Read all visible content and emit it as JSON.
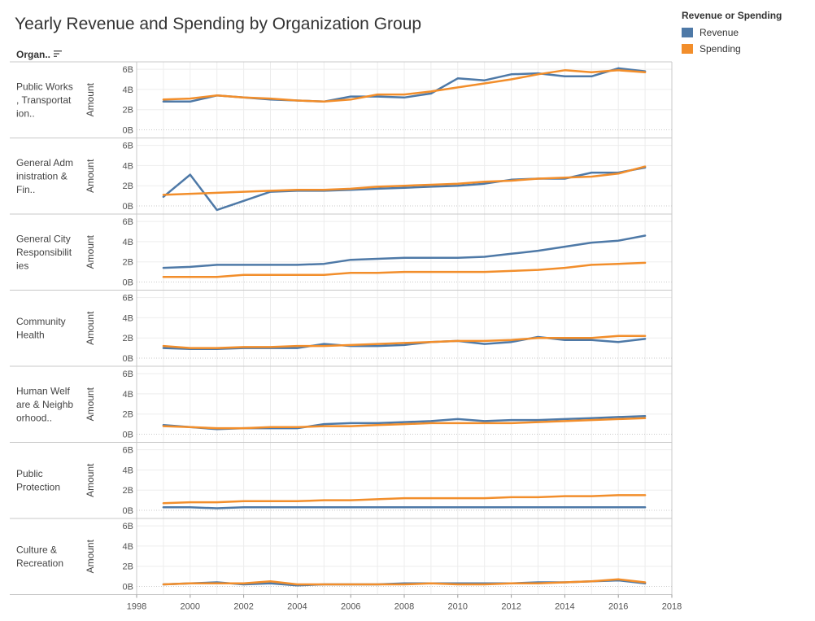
{
  "title": "Yearly Revenue and Spending by Organization Group",
  "sort_label": "Organ..",
  "legend": {
    "title": "Revenue or Spending",
    "items": [
      {
        "label": "Revenue",
        "color": "#4e79a7"
      },
      {
        "label": "Spending",
        "color": "#f28e2b"
      }
    ]
  },
  "chart_data": {
    "type": "line",
    "x": [
      1999,
      2000,
      2001,
      2002,
      2003,
      2004,
      2005,
      2006,
      2007,
      2008,
      2009,
      2010,
      2011,
      2012,
      2013,
      2014,
      2015,
      2016,
      2017
    ],
    "x_ticks": [
      "1998",
      "2000",
      "2002",
      "2004",
      "2006",
      "2008",
      "2010",
      "2012",
      "2014",
      "2016",
      "2018"
    ],
    "xlim": [
      1998,
      2018
    ],
    "ylim": [
      0,
      6.5
    ],
    "y_ticks": [
      "0B",
      "2B",
      "4B",
      "6B"
    ],
    "ylabel": "Amount",
    "grid": true,
    "panels": [
      {
        "label": "Public Works\n, Transportat\nion..",
        "series": [
          {
            "name": "Revenue",
            "values": [
              2.8,
              2.8,
              3.4,
              3.2,
              3.0,
              2.9,
              2.8,
              3.3,
              3.3,
              3.2,
              3.6,
              5.1,
              4.9,
              5.5,
              5.6,
              5.3,
              5.3,
              6.1,
              5.8
            ]
          },
          {
            "name": "Spending",
            "values": [
              3.0,
              3.1,
              3.4,
              3.2,
              3.1,
              2.9,
              2.8,
              3.0,
              3.5,
              3.5,
              3.8,
              4.2,
              4.6,
              5.0,
              5.5,
              5.9,
              5.7,
              5.9,
              5.7
            ]
          }
        ]
      },
      {
        "label": "General Adm\ninistration &\nFin..",
        "series": [
          {
            "name": "Revenue",
            "values": [
              0.9,
              3.1,
              -0.4,
              0.5,
              1.4,
              1.5,
              1.5,
              1.6,
              1.7,
              1.8,
              1.9,
              2.0,
              2.2,
              2.6,
              2.7,
              2.7,
              3.3,
              3.3,
              3.8
            ]
          },
          {
            "name": "Spending",
            "values": [
              1.1,
              1.2,
              1.3,
              1.4,
              1.5,
              1.6,
              1.6,
              1.7,
              1.9,
              2.0,
              2.1,
              2.2,
              2.4,
              2.5,
              2.7,
              2.8,
              2.9,
              3.2,
              3.9
            ]
          }
        ]
      },
      {
        "label": "General City\nResponsibilit\nies",
        "series": [
          {
            "name": "Revenue",
            "values": [
              1.4,
              1.5,
              1.7,
              1.7,
              1.7,
              1.7,
              1.8,
              2.2,
              2.3,
              2.4,
              2.4,
              2.4,
              2.5,
              2.8,
              3.1,
              3.5,
              3.9,
              4.1,
              4.6
            ]
          },
          {
            "name": "Spending",
            "values": [
              0.5,
              0.5,
              0.5,
              0.7,
              0.7,
              0.7,
              0.7,
              0.9,
              0.9,
              1.0,
              1.0,
              1.0,
              1.0,
              1.1,
              1.2,
              1.4,
              1.7,
              1.8,
              1.9
            ]
          }
        ]
      },
      {
        "label": "Community\nHealth",
        "series": [
          {
            "name": "Revenue",
            "values": [
              1.0,
              0.9,
              0.9,
              1.0,
              1.0,
              1.0,
              1.4,
              1.2,
              1.2,
              1.3,
              1.6,
              1.7,
              1.4,
              1.6,
              2.1,
              1.8,
              1.8,
              1.6,
              1.9
            ]
          },
          {
            "name": "Spending",
            "values": [
              1.2,
              1.0,
              1.0,
              1.1,
              1.1,
              1.2,
              1.2,
              1.3,
              1.4,
              1.5,
              1.6,
              1.7,
              1.7,
              1.8,
              2.0,
              2.0,
              2.0,
              2.2,
              2.2
            ]
          }
        ]
      },
      {
        "label": "Human Welf\nare & Neighb\norhood..",
        "series": [
          {
            "name": "Revenue",
            "values": [
              0.9,
              0.7,
              0.5,
              0.6,
              0.6,
              0.6,
              1.0,
              1.1,
              1.1,
              1.2,
              1.3,
              1.5,
              1.3,
              1.4,
              1.4,
              1.5,
              1.6,
              1.7,
              1.8
            ]
          },
          {
            "name": "Spending",
            "values": [
              0.8,
              0.7,
              0.6,
              0.6,
              0.7,
              0.7,
              0.8,
              0.8,
              0.9,
              1.0,
              1.1,
              1.1,
              1.1,
              1.1,
              1.2,
              1.3,
              1.4,
              1.5,
              1.6
            ]
          }
        ]
      },
      {
        "label": "Public\nProtection",
        "series": [
          {
            "name": "Revenue",
            "values": [
              0.3,
              0.3,
              0.2,
              0.3,
              0.3,
              0.3,
              0.3,
              0.3,
              0.3,
              0.3,
              0.3,
              0.3,
              0.3,
              0.3,
              0.3,
              0.3,
              0.3,
              0.3,
              0.3
            ]
          },
          {
            "name": "Spending",
            "values": [
              0.7,
              0.8,
              0.8,
              0.9,
              0.9,
              0.9,
              1.0,
              1.0,
              1.1,
              1.2,
              1.2,
              1.2,
              1.2,
              1.3,
              1.3,
              1.4,
              1.4,
              1.5,
              1.5
            ]
          }
        ]
      },
      {
        "label": "Culture &\nRecreation",
        "series": [
          {
            "name": "Revenue",
            "values": [
              0.2,
              0.3,
              0.4,
              0.2,
              0.3,
              0.1,
              0.2,
              0.2,
              0.2,
              0.3,
              0.3,
              0.3,
              0.3,
              0.3,
              0.4,
              0.4,
              0.5,
              0.6,
              0.3
            ]
          },
          {
            "name": "Spending",
            "values": [
              0.2,
              0.3,
              0.3,
              0.3,
              0.5,
              0.2,
              0.2,
              0.2,
              0.2,
              0.2,
              0.3,
              0.2,
              0.2,
              0.3,
              0.3,
              0.4,
              0.5,
              0.7,
              0.4
            ]
          }
        ]
      }
    ]
  }
}
